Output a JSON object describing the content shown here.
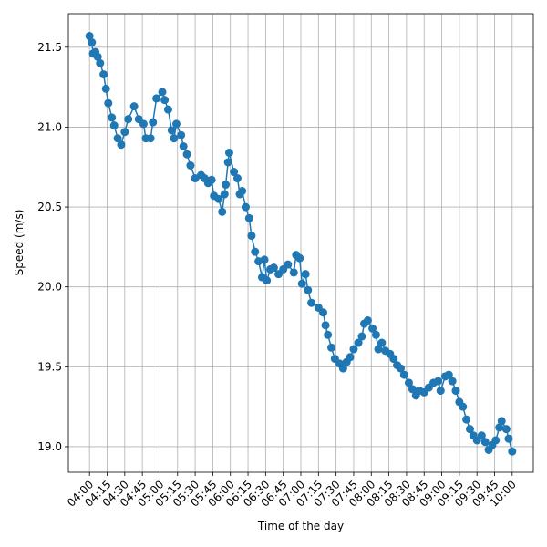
{
  "chart_data": {
    "type": "line",
    "xlabel": "Time of the day",
    "ylabel": "Speed (m/s)",
    "x": [
      "04:00",
      "04:02",
      "04:03",
      "04:05",
      "04:07",
      "04:09",
      "04:12",
      "04:14",
      "04:16",
      "04:19",
      "04:21",
      "04:24",
      "04:27",
      "04:30",
      "04:33",
      "04:38",
      "04:42",
      "04:46",
      "04:48",
      "04:52",
      "04:54",
      "04:57",
      "05:02",
      "05:04",
      "05:07",
      "05:10",
      "05:12",
      "05:14",
      "05:18",
      "05:20",
      "05:23",
      "05:26",
      "05:30",
      "05:35",
      "05:38",
      "05:41",
      "05:44",
      "05:46",
      "05:50",
      "05:53",
      "05:55",
      "05:56",
      "05:58",
      "05:59",
      "06:03",
      "06:06",
      "06:08",
      "06:10",
      "06:13",
      "06:16",
      "06:18",
      "06:21",
      "06:24",
      "06:27",
      "06:29",
      "06:31",
      "06:34",
      "06:37",
      "06:41",
      "06:45",
      "06:49",
      "06:54",
      "06:56",
      "06:59",
      "07:01",
      "07:04",
      "07:06",
      "07:09",
      "07:15",
      "07:19",
      "07:21",
      "07:23",
      "07:26",
      "07:29",
      "07:33",
      "07:36",
      "07:39",
      "07:42",
      "07:45",
      "07:49",
      "07:52",
      "07:54",
      "07:57",
      "08:01",
      "08:04",
      "08:06",
      "08:09",
      "08:12",
      "08:16",
      "08:19",
      "08:22",
      "08:25",
      "08:28",
      "08:32",
      "08:35",
      "08:38",
      "08:41",
      "08:45",
      "08:49",
      "08:53",
      "08:57",
      "08:59",
      "09:03",
      "09:06",
      "09:09",
      "09:12",
      "09:15",
      "09:18",
      "09:21",
      "09:24",
      "09:27",
      "09:30",
      "09:34",
      "09:37",
      "09:40",
      "09:43",
      "09:46",
      "09:49",
      "09:51",
      "09:55",
      "09:57",
      "10:00"
    ],
    "series": [
      {
        "color": "#1f77b4",
        "values": [
          21.57,
          21.53,
          21.46,
          21.47,
          21.44,
          21.4,
          21.33,
          21.24,
          21.15,
          21.06,
          21.01,
          20.93,
          20.89,
          20.97,
          21.05,
          21.13,
          21.05,
          21.02,
          20.93,
          20.93,
          21.03,
          21.18,
          21.22,
          21.17,
          21.11,
          20.98,
          20.93,
          21.02,
          20.95,
          20.88,
          20.83,
          20.76,
          20.68,
          20.7,
          20.68,
          20.65,
          20.67,
          20.57,
          20.55,
          20.47,
          20.58,
          20.64,
          20.78,
          20.84,
          20.72,
          20.68,
          20.58,
          20.6,
          20.5,
          20.43,
          20.32,
          20.22,
          20.16,
          20.06,
          20.17,
          20.04,
          20.11,
          20.12,
          20.08,
          20.11,
          20.14,
          20.09,
          20.2,
          20.18,
          20.02,
          20.08,
          19.98,
          19.9,
          19.87,
          19.84,
          19.76,
          19.7,
          19.62,
          19.55,
          19.52,
          19.49,
          19.53,
          19.56,
          19.61,
          19.65,
          19.69,
          19.77,
          19.79,
          19.74,
          19.7,
          19.61,
          19.65,
          19.6,
          19.58,
          19.55,
          19.51,
          19.49,
          19.45,
          19.4,
          19.36,
          19.32,
          19.35,
          19.34,
          19.37,
          19.4,
          19.41,
          19.35,
          19.44,
          19.45,
          19.41,
          19.35,
          19.28,
          19.25,
          19.17,
          19.11,
          19.07,
          19.04,
          19.07,
          19.03,
          18.98,
          19.01,
          19.04,
          19.12,
          19.16,
          19.11,
          19.05,
          18.97
        ]
      }
    ],
    "xlim": [
      "03:42",
      "10:18"
    ],
    "xticks": [
      "04:00",
      "04:15",
      "04:30",
      "04:45",
      "05:00",
      "05:15",
      "05:30",
      "05:45",
      "06:00",
      "06:15",
      "06:30",
      "06:45",
      "07:00",
      "07:15",
      "07:30",
      "07:45",
      "08:00",
      "08:15",
      "08:30",
      "08:45",
      "09:00",
      "09:15",
      "09:30",
      "09:45",
      "10:00"
    ],
    "ylim": [
      18.84,
      21.71
    ],
    "yticks": [
      {
        "value": 19,
        "label": "19.0"
      },
      19.5,
      {
        "value": 20,
        "label": "20.0"
      },
      20.5,
      {
        "value": 21,
        "label": "21.0"
      },
      21.5
    ],
    "grid": true
  }
}
